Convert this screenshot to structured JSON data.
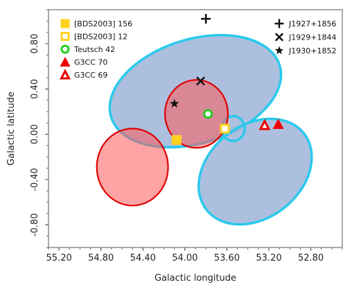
{
  "chart_data": {
    "type": "scatter",
    "title": "",
    "xlabel": "Galactic longitude",
    "ylabel": "Galactic latitude",
    "xlim": [
      55.3,
      52.5
    ],
    "ylim": [
      -1.0,
      1.1
    ],
    "x_inverted": true,
    "grid": false,
    "x_ticks": [
      {
        "value": 55.2,
        "label": "55.20"
      },
      {
        "value": 54.8,
        "label": "54.80"
      },
      {
        "value": 54.4,
        "label": "54.40"
      },
      {
        "value": 54.0,
        "label": "54.00"
      },
      {
        "value": 53.6,
        "label": "53.60"
      },
      {
        "value": 53.2,
        "label": "53.20"
      },
      {
        "value": 52.8,
        "label": "52.80"
      }
    ],
    "y_ticks": [
      {
        "value": 0.8,
        "label": "0.80"
      },
      {
        "value": 0.4,
        "label": "0.40"
      },
      {
        "value": 0.0,
        "label": "0.00"
      },
      {
        "value": -0.4,
        "label": "-0.40"
      },
      {
        "value": -0.8,
        "label": "-0.80"
      }
    ],
    "regions": [
      {
        "kind": "ellipse",
        "color": "#29c9ee",
        "fill": "#9db4d8",
        "cx": 53.9,
        "cy": 0.38,
        "rx": 0.84,
        "ry": 0.46,
        "angle": -17
      },
      {
        "kind": "ellipse",
        "color": "#29c9ee",
        "fill": "#9db4d8",
        "cx": 53.33,
        "cy": -0.33,
        "rx": 0.59,
        "ry": 0.41,
        "angle": -38
      },
      {
        "kind": "circle",
        "color": "#29c9ee",
        "fill": "none",
        "cx": 53.54,
        "cy": 0.05,
        "r": 0.11
      },
      {
        "kind": "circle",
        "color": "#e00000",
        "fill": "#ff5a5a",
        "cx": 54.5,
        "cy": -0.29,
        "r": 0.34
      },
      {
        "kind": "circle",
        "color": "#e00000",
        "fill": "#ff5a5a",
        "cx": 53.89,
        "cy": 0.18,
        "r": 0.3
      }
    ],
    "series": [
      {
        "name": "[BDS2003] 156",
        "marker": "filled-square",
        "color": "#ffd21f",
        "points": [
          {
            "x": 54.08,
            "y": -0.05
          }
        ]
      },
      {
        "name": "[BDS2003] 12",
        "marker": "open-square",
        "color": "#ffd21f",
        "points": [
          {
            "x": 53.62,
            "y": 0.05
          }
        ]
      },
      {
        "name": "Teutsch 42",
        "marker": "open-circle",
        "color": "#22cc22",
        "points": [
          {
            "x": 53.78,
            "y": 0.18
          }
        ]
      },
      {
        "name": "G3CC 70",
        "marker": "filled-triangle",
        "color": "#ee0000",
        "points": [
          {
            "x": 53.11,
            "y": 0.09
          }
        ]
      },
      {
        "name": "G3CC 69",
        "marker": "open-triangle",
        "color": "#ee0000",
        "points": [
          {
            "x": 53.24,
            "y": 0.08
          }
        ]
      },
      {
        "name": "J1927+1856",
        "marker": "plus",
        "color": "#111111",
        "points": [
          {
            "x": 53.8,
            "y": 1.02
          }
        ]
      },
      {
        "name": "J1929+1844",
        "marker": "cross",
        "color": "#111111",
        "points": [
          {
            "x": 53.85,
            "y": 0.47
          }
        ]
      },
      {
        "name": "J1930+1852",
        "marker": "star",
        "color": "#111111",
        "points": [
          {
            "x": 54.1,
            "y": 0.27
          }
        ]
      }
    ]
  }
}
